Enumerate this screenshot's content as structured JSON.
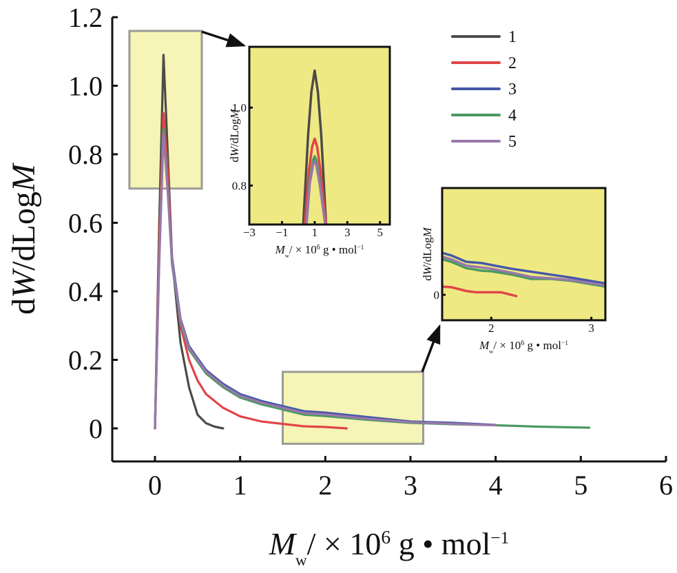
{
  "chart_data": [
    {
      "id": "main",
      "type": "line",
      "xlabel": {
        "var": "M",
        "sub": "w",
        "rest": "/ × 10",
        "sup": "6",
        "unit": " g • mol",
        "unit_sup": "−1"
      },
      "ylabel": {
        "pre": "d",
        "var1": "W",
        "mid": "/dLog",
        "var2": "M"
      },
      "xlim": [
        -0.5,
        6
      ],
      "ylim": [
        -0.1,
        1.2
      ],
      "xticks": [
        0,
        1,
        2,
        3,
        4,
        5,
        6
      ],
      "xtick_labels": [
        "0",
        "1",
        "2",
        "3",
        "4",
        "5",
        "6"
      ],
      "yticks": [
        0,
        0.2,
        0.4,
        0.6,
        0.8,
        1.0,
        1.2
      ],
      "ytick_labels": [
        "0",
        "0.2",
        "0.4",
        "0.6",
        "0.8",
        "1.0",
        "1.2"
      ],
      "highlight_regions": [
        {
          "x": [
            -0.3,
            0.55
          ],
          "y": [
            0.7,
            1.16
          ]
        },
        {
          "x": [
            1.5,
            3.15
          ],
          "y": [
            -0.045,
            0.165
          ]
        }
      ],
      "legend": {
        "placement": "top-right",
        "entries": [
          "1",
          "2",
          "3",
          "4",
          "5"
        ]
      },
      "series": [
        {
          "name": "1",
          "color": "#4d4a48",
          "x": [
            0,
            0.05,
            0.1,
            0.15,
            0.2,
            0.3,
            0.4,
            0.5,
            0.6,
            0.7,
            0.8
          ],
          "y": [
            0,
            0.6,
            1.09,
            0.8,
            0.5,
            0.25,
            0.12,
            0.04,
            0.015,
            0.005,
            0
          ]
        },
        {
          "name": "2",
          "color": "#e0454a",
          "x": [
            0,
            0.05,
            0.1,
            0.15,
            0.2,
            0.3,
            0.4,
            0.5,
            0.6,
            0.8,
            1.0,
            1.25,
            1.5,
            1.75,
            2.0,
            2.25
          ],
          "y": [
            0,
            0.55,
            0.92,
            0.75,
            0.5,
            0.3,
            0.2,
            0.14,
            0.1,
            0.06,
            0.035,
            0.02,
            0.013,
            0.006,
            0.004,
            0
          ]
        },
        {
          "name": "3",
          "color": "#4458a8",
          "x": [
            0,
            0.05,
            0.1,
            0.15,
            0.2,
            0.3,
            0.4,
            0.6,
            0.8,
            1.0,
            1.25,
            1.5,
            1.75,
            2.0,
            2.5,
            3.0,
            3.5,
            4.0
          ],
          "y": [
            0,
            0.5,
            0.87,
            0.7,
            0.5,
            0.32,
            0.24,
            0.17,
            0.13,
            0.1,
            0.08,
            0.065,
            0.05,
            0.046,
            0.033,
            0.02,
            0.016,
            0.01
          ]
        },
        {
          "name": "4",
          "color": "#4a9a62",
          "x": [
            0,
            0.05,
            0.1,
            0.15,
            0.2,
            0.3,
            0.4,
            0.6,
            0.8,
            1.0,
            1.25,
            1.5,
            1.75,
            2.0,
            2.5,
            3.0,
            3.5,
            4.0,
            4.5,
            5.1
          ],
          "y": [
            0,
            0.5,
            0.875,
            0.69,
            0.48,
            0.31,
            0.23,
            0.16,
            0.12,
            0.09,
            0.07,
            0.055,
            0.04,
            0.036,
            0.025,
            0.016,
            0.012,
            0.009,
            0.005,
            0.002
          ]
        },
        {
          "name": "5",
          "color": "#9a78aa",
          "x": [
            0,
            0.05,
            0.1,
            0.15,
            0.2,
            0.3,
            0.4,
            0.6,
            0.8,
            1.0,
            1.25,
            1.5,
            1.75,
            2.0,
            2.5,
            3.0,
            3.5,
            4.0
          ],
          "y": [
            0,
            0.48,
            0.86,
            0.69,
            0.49,
            0.315,
            0.235,
            0.165,
            0.125,
            0.095,
            0.075,
            0.06,
            0.045,
            0.041,
            0.028,
            0.018,
            0.013,
            0.009
          ]
        }
      ]
    },
    {
      "id": "inset-peak",
      "type": "line",
      "xlabel": {
        "var": "M",
        "sub": "w",
        "rest": "/ × 10",
        "sup": "6",
        "unit": " g • mol",
        "unit_sup": "−1"
      },
      "ylabel": {
        "pre": "d",
        "var1": "W",
        "mid": "/dLog",
        "var2": "M"
      },
      "xlim": [
        -3,
        5.6
      ],
      "ylim": [
        0.7,
        1.156
      ],
      "xticks": [
        -3,
        -1,
        1,
        3,
        5
      ],
      "xtick_labels": [
        "−3",
        "−1",
        "1",
        "3",
        "5"
      ],
      "yticks": [
        0.8,
        1.0
      ],
      "ytick_labels": [
        "0.8",
        "1.0"
      ],
      "series": [
        {
          "name": "1",
          "color": "#4d4a48",
          "x": [
            0.3,
            0.6,
            0.8,
            1.0,
            1.2,
            1.4,
            1.7
          ],
          "y": [
            0.7,
            0.93,
            1.04,
            1.095,
            1.04,
            0.93,
            0.7
          ]
        },
        {
          "name": "2",
          "color": "#e0454a",
          "x": [
            0.4,
            0.65,
            0.85,
            1.0,
            1.15,
            1.35,
            1.7
          ],
          "y": [
            0.7,
            0.84,
            0.9,
            0.92,
            0.9,
            0.84,
            0.7
          ]
        },
        {
          "name": "3",
          "color": "#4458a8",
          "x": [
            0.5,
            0.7,
            0.9,
            1.0,
            1.1,
            1.3,
            1.65
          ],
          "y": [
            0.7,
            0.81,
            0.86,
            0.87,
            0.86,
            0.81,
            0.7
          ]
        },
        {
          "name": "4",
          "color": "#4a9a62",
          "x": [
            0.5,
            0.7,
            0.9,
            1.0,
            1.1,
            1.3,
            1.65
          ],
          "y": [
            0.7,
            0.815,
            0.865,
            0.875,
            0.865,
            0.815,
            0.7
          ]
        },
        {
          "name": "5",
          "color": "#9a78aa",
          "x": [
            0.5,
            0.7,
            0.9,
            1.0,
            1.1,
            1.3,
            1.65
          ],
          "y": [
            0.7,
            0.805,
            0.852,
            0.862,
            0.852,
            0.805,
            0.7
          ]
        }
      ]
    },
    {
      "id": "inset-tail",
      "type": "line",
      "xlabel": {
        "var": "M",
        "sub": "w",
        "rest": "/ × 10",
        "sup": "6",
        "unit": " g • mol",
        "unit_sup": "−1"
      },
      "ylabel": {
        "pre": "d",
        "var1": "W",
        "mid": "/dLog",
        "var2": "M"
      },
      "xlim": [
        1.51,
        3.14
      ],
      "ylim": [
        -0.04,
        0.168
      ],
      "xticks": [
        2,
        3
      ],
      "xtick_labels": [
        "2",
        "3"
      ],
      "yticks": [
        0
      ],
      "ytick_labels": [
        "0"
      ],
      "series": [
        {
          "name": "2",
          "color": "#e0454a",
          "x": [
            1.51,
            1.6,
            1.75,
            1.85,
            2.0,
            2.1,
            2.2,
            2.25
          ],
          "y": [
            0.013,
            0.012,
            0.006,
            0.004,
            0.004,
            0.004,
            0.0,
            -0.002
          ]
        },
        {
          "name": "3",
          "color": "#4458a8",
          "x": [
            1.51,
            1.6,
            1.75,
            1.9,
            2.0,
            2.2,
            2.5,
            2.8,
            3.14
          ],
          "y": [
            0.066,
            0.062,
            0.052,
            0.05,
            0.047,
            0.041,
            0.034,
            0.027,
            0.018
          ]
        },
        {
          "name": "4",
          "color": "#4a9a62",
          "x": [
            1.51,
            1.6,
            1.75,
            1.9,
            2.0,
            2.2,
            2.4,
            2.6,
            2.8,
            3.14
          ],
          "y": [
            0.056,
            0.052,
            0.042,
            0.038,
            0.037,
            0.032,
            0.025,
            0.025,
            0.022,
            0.013
          ]
        },
        {
          "name": "5",
          "color": "#9a78aa",
          "x": [
            1.51,
            1.6,
            1.75,
            1.9,
            2.0,
            2.2,
            2.4,
            2.6,
            2.8,
            3.14
          ],
          "y": [
            0.06,
            0.056,
            0.046,
            0.043,
            0.041,
            0.035,
            0.028,
            0.026,
            0.023,
            0.015
          ]
        }
      ]
    }
  ]
}
